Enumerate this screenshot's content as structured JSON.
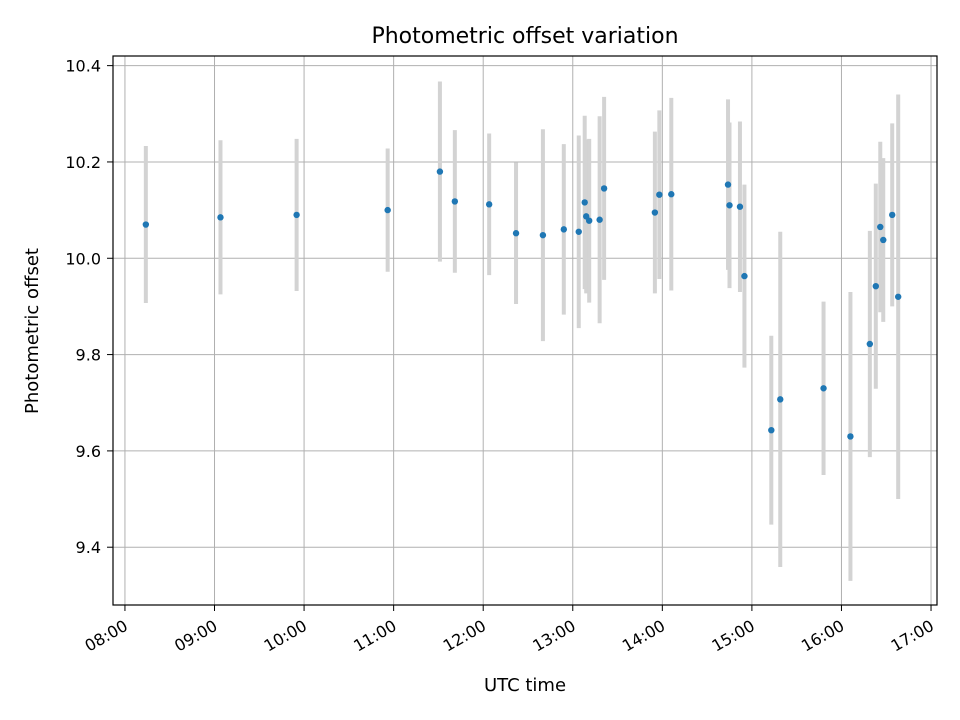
{
  "chart_data": {
    "type": "scatter",
    "title": "Photometric offset variation",
    "xlabel": "UTC time",
    "ylabel": "Photometric offset",
    "grid": true,
    "xlim": [
      "07:52",
      "17:04"
    ],
    "ylim": [
      9.28,
      10.42
    ],
    "x_ticks": [
      "08:00",
      "09:00",
      "10:00",
      "11:00",
      "12:00",
      "13:00",
      "14:00",
      "15:00",
      "16:00",
      "17:00"
    ],
    "y_ticks": [
      "9.4",
      "9.6",
      "9.8",
      "10.0",
      "10.2",
      "10.4"
    ],
    "y_tick_values": [
      9.4,
      9.6,
      9.8,
      10.0,
      10.2,
      10.4
    ],
    "colors": {
      "point": "#1f77b4",
      "errorbar": "#d3d3d3",
      "grid": "#b0b0b0"
    },
    "points": [
      {
        "time": "08:14",
        "y": 10.07,
        "err": 0.163
      },
      {
        "time": "09:04",
        "y": 10.085,
        "err": 0.16
      },
      {
        "time": "09:55",
        "y": 10.09,
        "err": 0.158
      },
      {
        "time": "10:56",
        "y": 10.1,
        "err": 0.128
      },
      {
        "time": "11:31",
        "y": 10.18,
        "err": 0.187
      },
      {
        "time": "11:41",
        "y": 10.118,
        "err": 0.148
      },
      {
        "time": "12:04",
        "y": 10.112,
        "err": 0.147
      },
      {
        "time": "12:22",
        "y": 10.052,
        "err": 0.147
      },
      {
        "time": "12:40",
        "y": 10.048,
        "err": 0.22
      },
      {
        "time": "12:54",
        "y": 10.06,
        "err": 0.177
      },
      {
        "time": "13:04",
        "y": 10.055,
        "err": 0.2
      },
      {
        "time": "13:08",
        "y": 10.116,
        "err": 0.18
      },
      {
        "time": "13:09",
        "y": 10.087,
        "err": 0.16
      },
      {
        "time": "13:11",
        "y": 10.078,
        "err": 0.17
      },
      {
        "time": "13:18",
        "y": 10.08,
        "err": 0.215
      },
      {
        "time": "13:21",
        "y": 10.145,
        "err": 0.19
      },
      {
        "time": "13:55",
        "y": 10.095,
        "err": 0.168
      },
      {
        "time": "13:58",
        "y": 10.132,
        "err": 0.175
      },
      {
        "time": "14:06",
        "y": 10.133,
        "err": 0.2
      },
      {
        "time": "14:44",
        "y": 10.153,
        "err": 0.177
      },
      {
        "time": "14:45",
        "y": 10.11,
        "err": 0.172
      },
      {
        "time": "14:52",
        "y": 10.107,
        "err": 0.177
      },
      {
        "time": "14:55",
        "y": 9.963,
        "err": 0.19
      },
      {
        "time": "15:13",
        "y": 9.643,
        "err": 0.196
      },
      {
        "time": "15:19",
        "y": 9.707,
        "err": 0.348
      },
      {
        "time": "15:48",
        "y": 9.73,
        "err": 0.18
      },
      {
        "time": "16:06",
        "y": 9.63,
        "err": 0.3
      },
      {
        "time": "16:19",
        "y": 9.822,
        "err": 0.235
      },
      {
        "time": "16:23",
        "y": 9.942,
        "err": 0.213
      },
      {
        "time": "16:26",
        "y": 10.065,
        "err": 0.177
      },
      {
        "time": "16:28",
        "y": 10.038,
        "err": 0.17
      },
      {
        "time": "16:34",
        "y": 10.09,
        "err": 0.19
      },
      {
        "time": "16:38",
        "y": 9.92,
        "err": 0.42
      }
    ]
  }
}
